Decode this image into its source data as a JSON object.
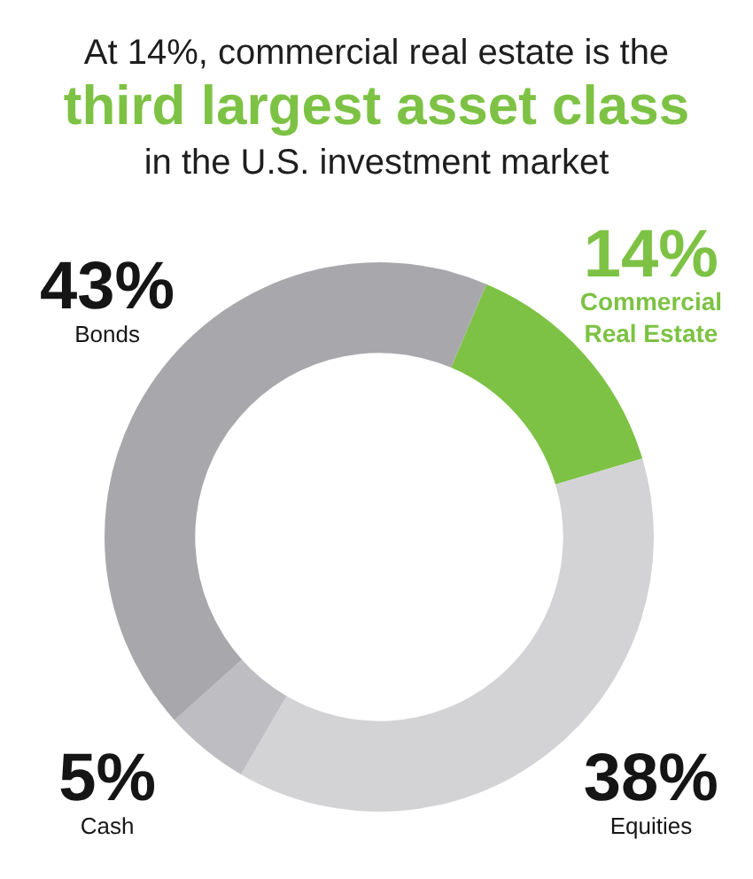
{
  "chart_data": {
    "type": "donut",
    "title": "At 14%, commercial real estate is the\nthird largest asset class\nin the U.S. investment market",
    "categories": [
      "Commercial Real Estate",
      "Equities",
      "Cash",
      "Bonds"
    ],
    "values": [
      14,
      38,
      5,
      43
    ],
    "colors": [
      "#7dc244",
      "#d3d3d5",
      "#bebec2",
      "#a8a8ac"
    ],
    "value_labels": [
      "14%",
      "38%",
      "5%",
      "43%"
    ]
  }
}
